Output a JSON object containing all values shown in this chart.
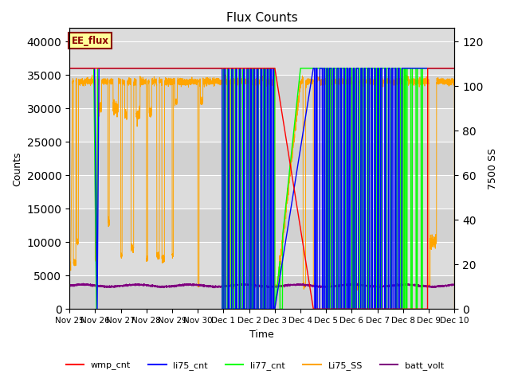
{
  "title": "Flux Counts",
  "xlabel": "Time",
  "ylabel_left": "Counts",
  "ylabel_right": "7500 SS",
  "left_ylim": [
    0,
    42000
  ],
  "right_ylim": [
    0,
    126
  ],
  "bg_color": "#dcdcdc",
  "annotation_text": "EE_flux",
  "annotation_box_color": "#ffff99",
  "annotation_border_color": "#8b0000",
  "xtick_labels": [
    "Nov 25",
    "Nov 26",
    "Nov 27",
    "Nov 28",
    "Nov 29",
    "Nov 30",
    "Dec 1",
    "Dec 2",
    "Dec 3",
    "Dec 4",
    "Dec 5",
    "Dec 6",
    "Dec 7",
    "Dec 8",
    "Dec 9",
    "Dec 10"
  ],
  "yticks_left": [
    0,
    5000,
    10000,
    15000,
    20000,
    25000,
    30000,
    35000,
    40000
  ],
  "yticks_right": [
    0,
    20,
    40,
    60,
    80,
    100,
    120
  ],
  "series_colors": {
    "wmp_cnt": "red",
    "li75_cnt": "blue",
    "li77_cnt": "lime",
    "Li75_SS": "orange",
    "batt_volt": "purple"
  }
}
